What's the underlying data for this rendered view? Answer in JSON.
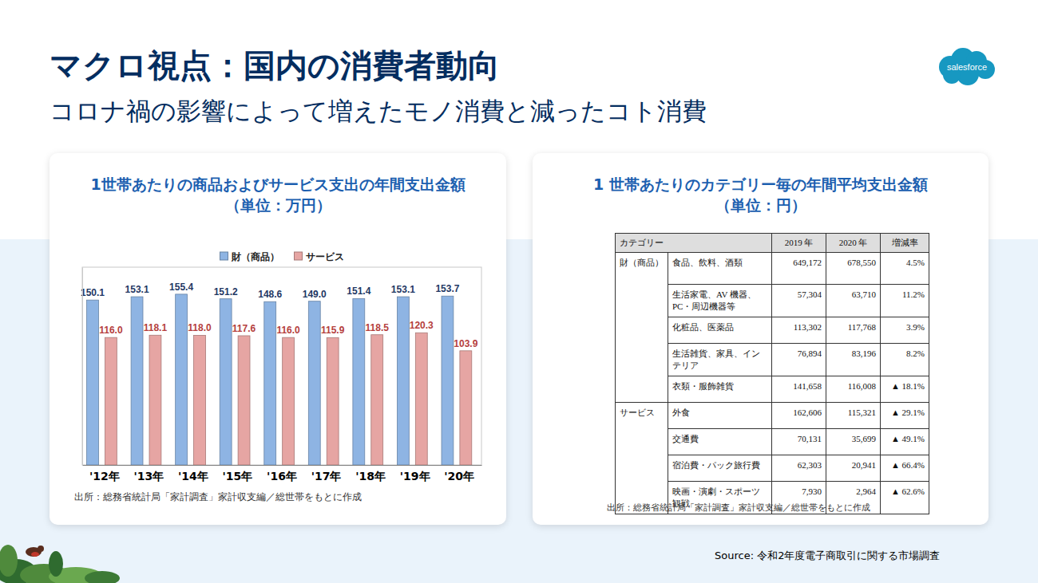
{
  "header": {
    "title": "マクロ視点：国内の消費者動向",
    "subtitle": "コロナ禍の影響によって増えたモノ消費と減ったコト消費",
    "logo": "salesforce"
  },
  "chart_data": {
    "type": "bar",
    "title": "1世帯あたりの商品およびサービス支出の年間支出金額（単位：万円）",
    "categories": [
      "'12年",
      "'13年",
      "'14年",
      "'15年",
      "'16年",
      "'17年",
      "'18年",
      "'19年",
      "'20年"
    ],
    "series": [
      {
        "name": "財（商品）",
        "color": "#8eb4e3",
        "values": [
          150.1,
          153.1,
          155.4,
          151.2,
          148.6,
          149.0,
          151.4,
          153.1,
          153.7
        ],
        "value_labels": [
          "150.1",
          "153.1",
          "155.4",
          "151.2",
          "148.6",
          "149.0",
          "151.4",
          "153.1",
          "153.7"
        ]
      },
      {
        "name": "サービス",
        "color": "#e6a5a3",
        "values": [
          116.0,
          118.1,
          118.0,
          117.6,
          116.0,
          115.9,
          118.5,
          120.3,
          103.9
        ],
        "value_labels": [
          "116.0",
          "118.1",
          "118.0",
          "117.6",
          "116.0",
          "115.9",
          "118.5",
          "120.3",
          "103.9"
        ]
      }
    ],
    "ylim": [
      0,
      180
    ],
    "tick_labels": "x",
    "legend": "top",
    "data_labels": true,
    "note": "出所：総務省統計局「家計調査」家計収支編／総世帯をもとに作成"
  },
  "table": {
    "title": "1 世帯あたりのカテゴリー毎の年間平均支出金額（単位：円）",
    "columns": [
      "カテゴリー",
      "2019 年",
      "2020 年",
      "増減率"
    ],
    "groups": [
      {
        "name": "財（商品）",
        "rows": [
          [
            "食品、飲料、酒類",
            "649,172",
            "678,550",
            "4.5%"
          ],
          [
            "生活家電、AV 機器、PC・周辺機器等",
            "57,304",
            "63,710",
            "11.2%"
          ],
          [
            "化粧品、医薬品",
            "113,302",
            "117,768",
            "3.9%"
          ],
          [
            "生活雑貨、家具、インテリア",
            "76,894",
            "83,196",
            "8.2%"
          ],
          [
            "衣類・服飾雑貨",
            "141,658",
            "116,008",
            "▲ 18.1%"
          ]
        ]
      },
      {
        "name": "サービス",
        "rows": [
          [
            "外食",
            "162,606",
            "115,321",
            "▲ 29.1%"
          ],
          [
            "交通費",
            "70,131",
            "35,699",
            "▲ 49.1%"
          ],
          [
            "宿泊費・パック旅行費",
            "62,303",
            "20,941",
            "▲ 66.4%"
          ],
          [
            "映画・演劇・スポーツ観戦",
            "7,930",
            "2,964",
            "▲ 62.6%"
          ]
        ]
      }
    ],
    "note": "出所：総務省統計局「家計調査」家計収支編／総世帯をもとに作成"
  },
  "source": "Source: 令和2年度電子商取引に関する市場調査"
}
